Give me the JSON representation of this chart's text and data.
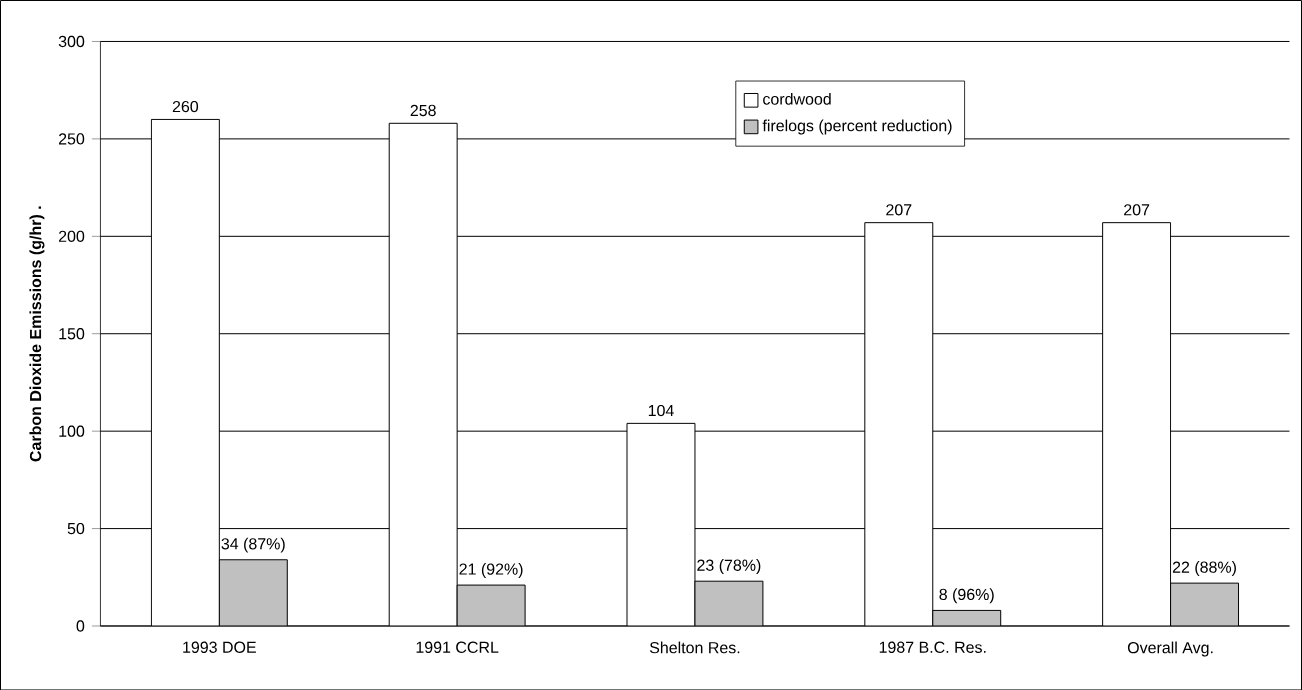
{
  "chart_data": {
    "type": "bar",
    "ylabel": "Carbon Dioxide Emissions (g/hr) .",
    "categories": [
      "1993 DOE",
      "1991 CCRL",
      "Shelton Res.",
      "1987 B.C. Res.",
      "Overall Avg."
    ],
    "series": [
      {
        "name": "cordwood",
        "color": "#ffffff",
        "values": [
          260,
          258,
          104,
          207,
          207
        ],
        "value_labels": [
          "260",
          "258",
          "104",
          "207",
          "207"
        ]
      },
      {
        "name": "firelogs (percent reduction)",
        "color": "#c0c0c0",
        "values": [
          34,
          21,
          23,
          8,
          22
        ],
        "value_labels": [
          "34 (87%)",
          "21 (92%)",
          "23 (78%)",
          "8 (96%)",
          "22 (88%)"
        ]
      }
    ],
    "ylim": [
      0,
      300
    ],
    "yticks": [
      0,
      50,
      100,
      150,
      200,
      250,
      300
    ],
    "grid": "y",
    "legend": "top right"
  }
}
